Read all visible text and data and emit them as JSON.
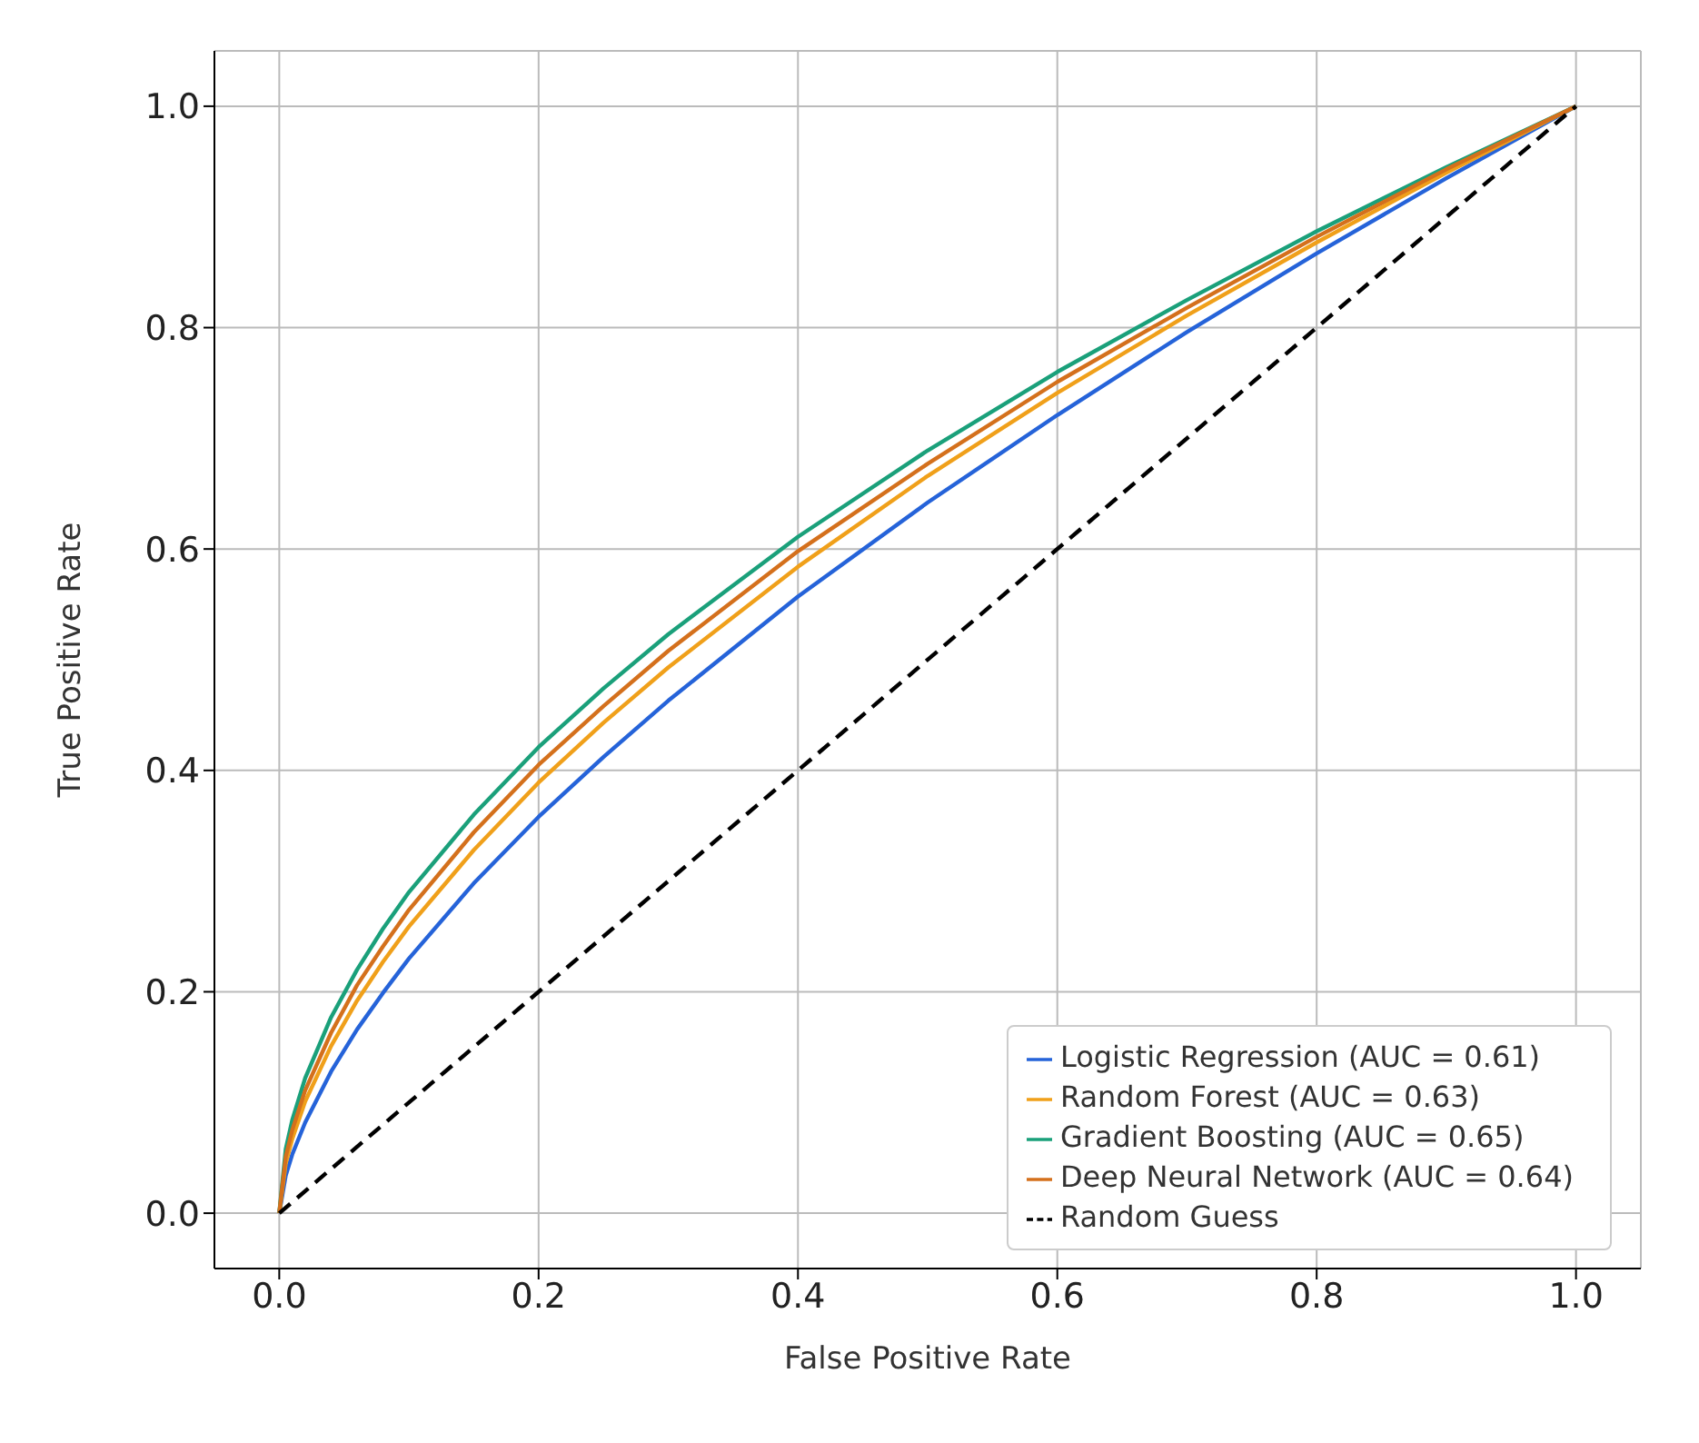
{
  "chart_data": {
    "type": "line",
    "xlabel": "False Positive Rate",
    "ylabel": "True Positive Rate",
    "xlim": [
      -0.05,
      1.05
    ],
    "ylim": [
      -0.05,
      1.05
    ],
    "xticks": [
      {
        "value": 0,
        "label": "0.0"
      },
      0.2,
      0.4,
      0.6,
      0.8,
      {
        "value": 1,
        "label": "1.0"
      }
    ],
    "yticks": [
      {
        "value": 0,
        "label": "0.0"
      },
      0.2,
      0.4,
      0.6,
      0.8,
      {
        "value": 1,
        "label": "1.0"
      }
    ],
    "grid": true,
    "legend": "bottom right",
    "marker": "none",
    "line_style": "solid",
    "x": [
      0,
      0.005,
      0.01,
      0.02,
      0.04,
      0.06,
      0.08,
      0.1,
      0.15,
      0.2,
      0.25,
      0.3,
      0.4,
      0.5,
      0.6,
      0.7,
      0.8,
      0.9,
      1
    ],
    "series": [
      {
        "name": "Logistic Regression (AUC = 0.61)",
        "color": "#2563d9",
        "values": [
          0,
          0.034,
          0.053,
          0.082,
          0.128,
          0.166,
          0.199,
          0.23,
          0.298,
          0.358,
          0.412,
          0.463,
          0.557,
          0.642,
          0.721,
          0.796,
          0.867,
          0.935,
          1
        ]
      },
      {
        "name": "Random Forest (AUC = 0.63)",
        "color": "#f0a01a",
        "values": [
          0,
          0.045,
          0.067,
          0.101,
          0.151,
          0.192,
          0.227,
          0.259,
          0.328,
          0.389,
          0.443,
          0.493,
          0.584,
          0.666,
          0.741,
          0.811,
          0.877,
          0.94,
          1
        ]
      },
      {
        "name": "Gradient Boosting (AUC = 0.65)",
        "color": "#1aa07a",
        "values": [
          0,
          0.058,
          0.084,
          0.122,
          0.177,
          0.22,
          0.257,
          0.29,
          0.36,
          0.421,
          0.474,
          0.523,
          0.611,
          0.689,
          0.76,
          0.825,
          0.887,
          0.945,
          1
        ]
      },
      {
        "name": "Deep Neural Network (AUC = 0.64)",
        "color": "#d4701c",
        "values": [
          0,
          0.051,
          0.075,
          0.111,
          0.163,
          0.206,
          0.241,
          0.274,
          0.344,
          0.405,
          0.458,
          0.508,
          0.598,
          0.677,
          0.751,
          0.818,
          0.882,
          0.943,
          1
        ]
      },
      {
        "name": "Random Guess",
        "color": "#000000",
        "line_style": "dashed",
        "x": [
          0,
          1
        ],
        "values": [
          0,
          1
        ]
      }
    ]
  }
}
